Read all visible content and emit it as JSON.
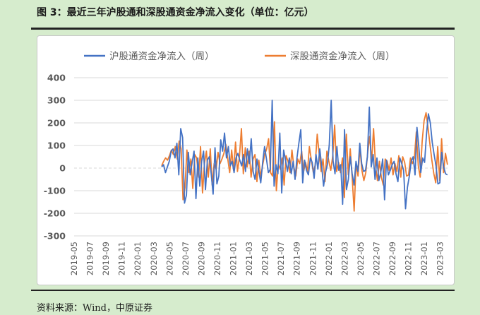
{
  "title": "图 3：最近三年沪股通和深股通资金净流入变化（单位：亿元）",
  "source": "资料来源：Wind，中原证券",
  "colors": {
    "shanghai": "#4472c4",
    "shenzhen": "#ed7d31",
    "grid": "#d9d9d9",
    "text": "#595959"
  },
  "chart_data": {
    "type": "line",
    "title": "",
    "xlabel": "",
    "ylabel": "",
    "ylim": [
      -300,
      400
    ],
    "yticks": [
      -300,
      -200,
      -100,
      0,
      100,
      200,
      300,
      400
    ],
    "grid": "horizontal",
    "legend_position": "top",
    "x_tick_labels": [
      "2019-05",
      "2019-07",
      "2019-09",
      "2019-11",
      "2020-01",
      "2020-03",
      "2020-05",
      "2020-07",
      "2020-09",
      "2020-11",
      "2021-01",
      "2021-03",
      "2021-05",
      "2021-07",
      "2021-09",
      "2021-11",
      "2022-01",
      "2022-03",
      "2022-05",
      "2022-07",
      "2022-09",
      "2022-11",
      "2023-01",
      "2023-03"
    ],
    "x_start": "2019-05",
    "x_end": "2023-04",
    "series": [
      {
        "name": "沪股通资金净流入（周）",
        "color": "#4472c4",
        "start": "2020-04",
        "values": [
          5,
          15,
          -20,
          5,
          30,
          75,
          85,
          45,
          110,
          -30,
          175,
          135,
          -155,
          -120,
          70,
          -30,
          25,
          75,
          -135,
          45,
          -80,
          30,
          75,
          -95,
          35,
          50,
          -25,
          -115,
          90,
          -70,
          -35,
          125,
          75,
          155,
          45,
          95,
          10,
          30,
          -20,
          45,
          65,
          35,
          10,
          60,
          -15,
          85,
          20,
          130,
          -15,
          -50,
          40,
          -15,
          -65,
          25,
          95,
          40,
          -20,
          -5,
          300,
          -80,
          15,
          -25,
          155,
          -110,
          80,
          35,
          -15,
          45,
          -25,
          30,
          -50,
          45,
          110,
          170,
          -65,
          35,
          -10,
          -30,
          45,
          25,
          -45,
          60,
          -5,
          85,
          10,
          -80,
          -20,
          15,
          105,
          300,
          30,
          -25,
          95,
          -10,
          15,
          -160,
          170,
          -95,
          -50,
          50,
          -25,
          -75,
          30,
          -15,
          110,
          20,
          -15,
          -10,
          50,
          270,
          5,
          60,
          -50,
          45,
          -55,
          -20,
          40,
          -140,
          35,
          -30,
          -10,
          15,
          30,
          -25,
          -60,
          45,
          20,
          -10,
          -180,
          -85,
          -35,
          30,
          50,
          -30,
          180,
          90,
          -20,
          45,
          25,
          150,
          240,
          200,
          115,
          60,
          10,
          -70,
          -65,
          70,
          5,
          -25,
          -30
        ]
      },
      {
        "name": "深股通资金净流入（周）",
        "color": "#ed7d31",
        "start": "2020-04",
        "values": [
          10,
          30,
          45,
          35,
          55,
          80,
          60,
          95,
          40,
          120,
          85,
          -140,
          -85,
          80,
          -20,
          40,
          -90,
          60,
          45,
          -40,
          95,
          -110,
          20,
          75,
          -40,
          85,
          -75,
          20,
          -5,
          70,
          20,
          40,
          65,
          105,
          40,
          -20,
          80,
          -10,
          115,
          -15,
          50,
          175,
          -25,
          90,
          5,
          75,
          -40,
          40,
          60,
          -60,
          35,
          -40,
          15,
          60,
          85,
          130,
          -20,
          -35,
          205,
          -100,
          20,
          -5,
          45,
          -75,
          55,
          30,
          -20,
          80,
          5,
          -35,
          40,
          20,
          75,
          -15,
          25,
          -15,
          95,
          35,
          -20,
          15,
          150,
          65,
          -15,
          40,
          -60,
          75,
          30,
          -10,
          55,
          190,
          -15,
          25,
          -20,
          45,
          -130,
          150,
          -30,
          85,
          -40,
          -190,
          20,
          -35,
          90,
          -10,
          -55,
          -20,
          70,
          140,
          30,
          175,
          10,
          -55,
          30,
          -40,
          -75,
          40,
          30,
          -10,
          45,
          -30,
          20,
          -15,
          55,
          -40,
          50,
          25,
          -35,
          -30,
          45,
          20,
          45,
          160,
          10,
          -40,
          120,
          210,
          245,
          180,
          105,
          35,
          -25,
          -65,
          95,
          -55,
          130,
          -20,
          65,
          15
        ]
      }
    ]
  }
}
